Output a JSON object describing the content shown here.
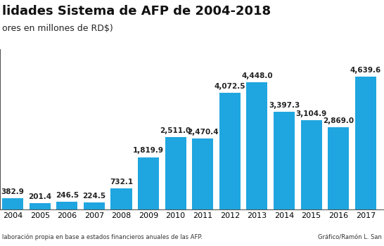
{
  "chart_data": {
    "type": "bar",
    "title": "lidades Sistema de AFP de 2004-2018",
    "subtitle": "ores en millones de RD$)",
    "notes": [
      "laboración propia en base a estados financieros anuales de las AFP.",
      "Gráfico/Ramón L. San"
    ],
    "categories": [
      "2004",
      "2005",
      "2006",
      "2007",
      "2008",
      "2009",
      "2010",
      "2011",
      "2012",
      "2013",
      "2014",
      "2015",
      "2016",
      "2017"
    ],
    "values": [
      382.9,
      201.4,
      246.5,
      224.5,
      732.1,
      1819.9,
      2511.0,
      2470.4,
      4072.5,
      4448.0,
      3397.3,
      3104.9,
      2869.0,
      4639.6
    ],
    "value_labels": [
      "382.9",
      "201.4",
      "246.5",
      "224.5",
      "732.1",
      "1,819.9",
      "2,511.0",
      "2,470.4",
      "4,072.5",
      "4,448.0",
      "3,397.3",
      "3,104.9",
      "2,869.0",
      "4,639.6"
    ],
    "color": "#1fa6e0",
    "ylim": [
      0,
      5600
    ],
    "yticks": [],
    "data_labels": true,
    "tick_labels": "x",
    "grid": false
  }
}
